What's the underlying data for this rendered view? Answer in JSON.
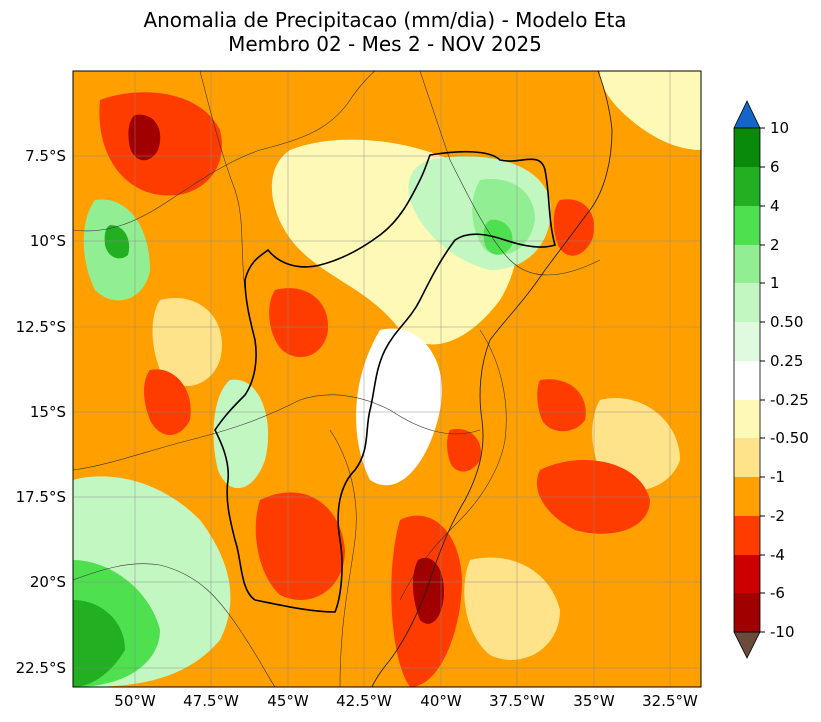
{
  "title": {
    "line1": "Anomalia de Precipitacao (mm/dia) - Modelo Eta",
    "line2": "Membro 02 - Mes 2 - NOV 2025"
  },
  "map": {
    "lat_ticks": [
      "7.5°S",
      "10°S",
      "12.5°S",
      "15°S",
      "17.5°S",
      "20°S",
      "22.5°S"
    ],
    "lon_ticks": [
      "50°W",
      "47.5°W",
      "45°W",
      "42.5°W",
      "40°W",
      "37.5°W",
      "35°W",
      "32.5°W"
    ],
    "lon_range": [
      -52.0,
      -31.5
    ],
    "lat_range": [
      -23.0,
      -5.0
    ],
    "gridlines": true
  },
  "colorbar": {
    "labels": [
      "10",
      "6",
      "4",
      "2",
      "1",
      "0.50",
      "0.25",
      "-0.25",
      "-0.50",
      "-1",
      "-2",
      "-4",
      "-6",
      "-10"
    ],
    "colors": [
      "#1565c8",
      "#0a8a0a",
      "#22b022",
      "#4ee04e",
      "#92ee92",
      "#c2f7c2",
      "#e0fae0",
      "#ffffff",
      "#fff9b8",
      "#ffe38a",
      "#ffa000",
      "#ff3c00",
      "#cc0000",
      "#a00000",
      "#6b4a3c"
    ]
  }
}
